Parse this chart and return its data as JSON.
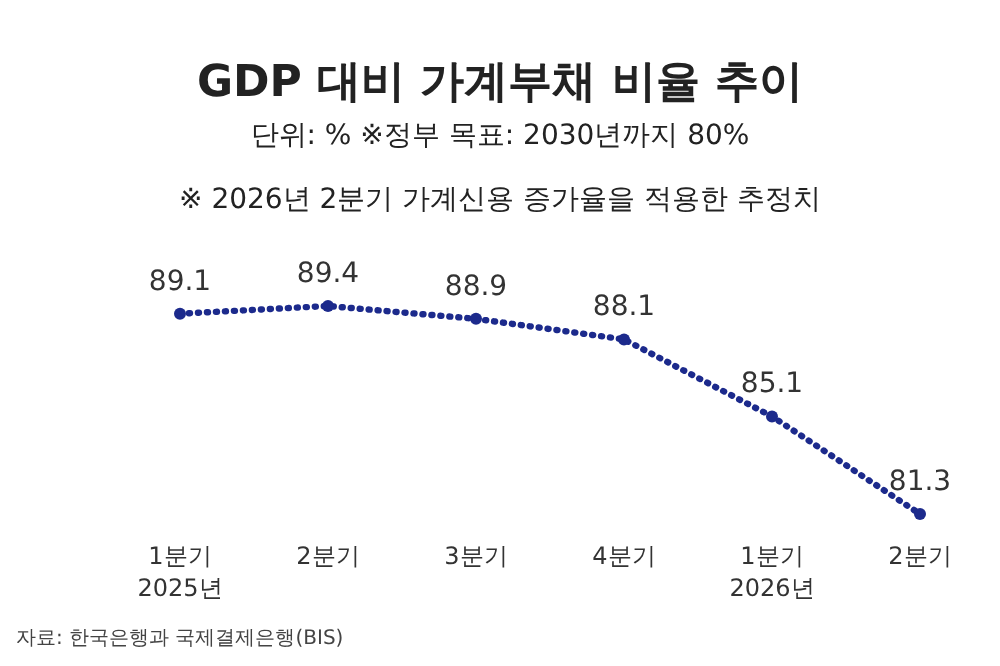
{
  "chart_data": {
    "type": "line",
    "title": "GDP 대비 가계부채 비율 추이",
    "subtitle": "단위: % ※정부 목표: 2030년까지 80%",
    "annotations": [
      "※ 2026년 2분기 가계신용 증가율을 적용한 추정치",
      "자료: 한국은행과 국제결제은행(BIS)"
    ],
    "categories": [
      "1분기\n2025년",
      "2분기",
      "3분기",
      "4분기",
      "1분기\n2026년",
      "2분기"
    ],
    "series": [
      {
        "color": "#1c2a8c",
        "values": [
          89.1,
          89.4,
          88.9,
          88.1,
          85.1,
          81.3
        ]
      }
    ],
    "data_labels": true,
    "marker": "circle",
    "line_style": "dotted"
  }
}
